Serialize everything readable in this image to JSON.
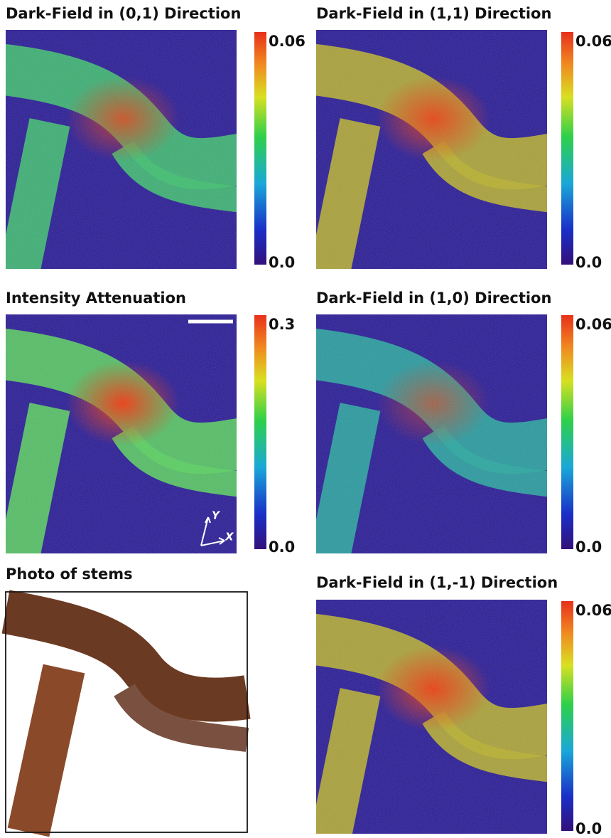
{
  "panels": [
    {
      "title": "Dark-Field in (0,1) Direction",
      "cbar_max": "0.06",
      "cbar_min": "0.0"
    },
    {
      "title": "Dark-Field in (1,1) Direction",
      "cbar_max": "0.06",
      "cbar_min": "0.0"
    },
    {
      "title": "Intensity Attenuation",
      "cbar_max": "0.3",
      "cbar_min": "0.0",
      "axis_y": "Y",
      "axis_x": "X"
    },
    {
      "title": "Dark-Field in (1,0) Direction",
      "cbar_max": "0.06",
      "cbar_min": "0.0"
    },
    {
      "title": "Dark-Field in (1,-1) Direction",
      "cbar_max": "0.06",
      "cbar_min": "0.0"
    }
  ],
  "photo": {
    "title": "Photo of stems"
  }
}
